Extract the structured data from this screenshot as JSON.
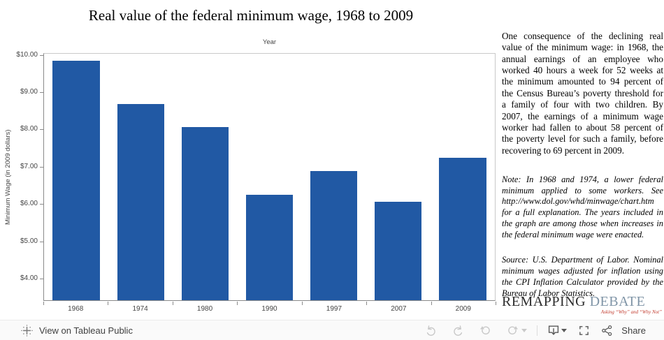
{
  "chart_data": {
    "type": "bar",
    "title": "Real value of the federal minimum wage, 1968 to 2009",
    "xlabel": "Year",
    "ylabel": "Minimum Wage (in 2009 dollars)",
    "categories": [
      "1968",
      "1974",
      "1980",
      "1990",
      "1997",
      "2007",
      "2009"
    ],
    "values": [
      9.86,
      8.7,
      8.07,
      6.24,
      6.88,
      6.05,
      7.25
    ],
    "ylim": [
      3.4,
      10.05
    ],
    "yticks": [
      {
        "value": 10,
        "label": "$10.00"
      },
      {
        "value": 9,
        "label": "$9.00"
      },
      {
        "value": 8,
        "label": "$8.00"
      },
      {
        "value": 7,
        "label": "$7.00"
      },
      {
        "value": 6,
        "label": "$6.00"
      },
      {
        "value": 5,
        "label": "$5.00"
      },
      {
        "value": 4,
        "label": "$4.00"
      }
    ],
    "bar_color": "#2159a4",
    "grid": false,
    "legend": "none"
  },
  "panel": {
    "body": "One consequence of the declining real value of the minimum wage: in 1968, the annual earnings of an employee who worked 40 hours a week for 52 weeks at the minimum amounted to 94 percent of the Census Bureau’s poverty threshold for a family of four with two children. By 2007, the earnings of a minimum wage worker had fallen to about 58 percent of the poverty level for such a family, before recovering to 69 percent in 2009.",
    "note": "Note: In 1968 and 1974, a lower federal minimum applied to some workers. See http://www.dol.gov/whd/minwage/chart.htm for a full explanation. The years included in the graph are among those when increases in the federal minimum wage were enacted.",
    "source": "Source: U.S. Department of Labor. Nominal minimum wages adjusted for inflation using the CPI Inflation Calculator provided by the Bureau of Labor Statistics."
  },
  "logo": {
    "word1": "REMAPPING",
    "word2": "DEBATE",
    "tagline": "Asking “Why” and “Why Not”",
    "tagline_color": "#c23b2e",
    "debate_color": "#8095a7"
  },
  "toolbar": {
    "view_label": "View on Tableau Public",
    "share_label": "Share",
    "icons": [
      "tableau-logo-icon",
      "undo-icon",
      "redo-icon",
      "reset-icon",
      "refresh-icon",
      "caret-down-icon",
      "download-icon",
      "fullscreen-icon",
      "share-icon"
    ],
    "colors": {
      "disabled": "#c9c9c9",
      "active": "#595959",
      "text": "#404040"
    }
  }
}
